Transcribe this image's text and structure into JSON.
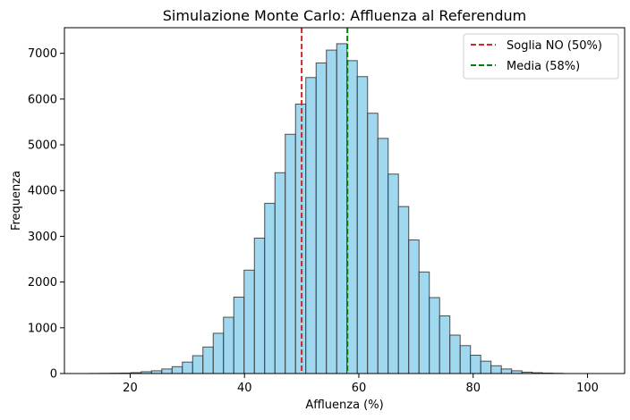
{
  "chart_data": {
    "type": "bar",
    "title": "Simulazione Monte Carlo: Affluenza al Referendum",
    "xlabel": "Affluenza (%)",
    "ylabel": "Frequenza",
    "xlim": [
      8.5,
      106.5
    ],
    "ylim": [
      0,
      7560
    ],
    "xticks": [
      20,
      40,
      60,
      80,
      100
    ],
    "yticks": [
      0,
      1000,
      2000,
      3000,
      4000,
      5000,
      6000,
      7000
    ],
    "bin_start": 12.93,
    "bin_width": 1.8,
    "values": [
      2,
      4,
      7,
      10,
      20,
      40,
      60,
      100,
      150,
      250,
      390,
      580,
      880,
      1230,
      1670,
      2260,
      2960,
      3720,
      4390,
      5230,
      5890,
      6470,
      6790,
      7070,
      7210,
      6840,
      6490,
      5690,
      5140,
      4360,
      3650,
      2920,
      2220,
      1660,
      1260,
      840,
      610,
      400,
      270,
      170,
      100,
      60,
      30,
      18,
      10,
      5
    ],
    "bar_color": "#87ceeb",
    "bar_edge_color": "#333333",
    "vlines": [
      {
        "x": 50,
        "color": "#d62728",
        "label": "Soglia NO (50%)"
      },
      {
        "x": 58,
        "color": "#008000",
        "label": "Media (58%)"
      }
    ],
    "legend_position": "top-right",
    "grid": false
  }
}
